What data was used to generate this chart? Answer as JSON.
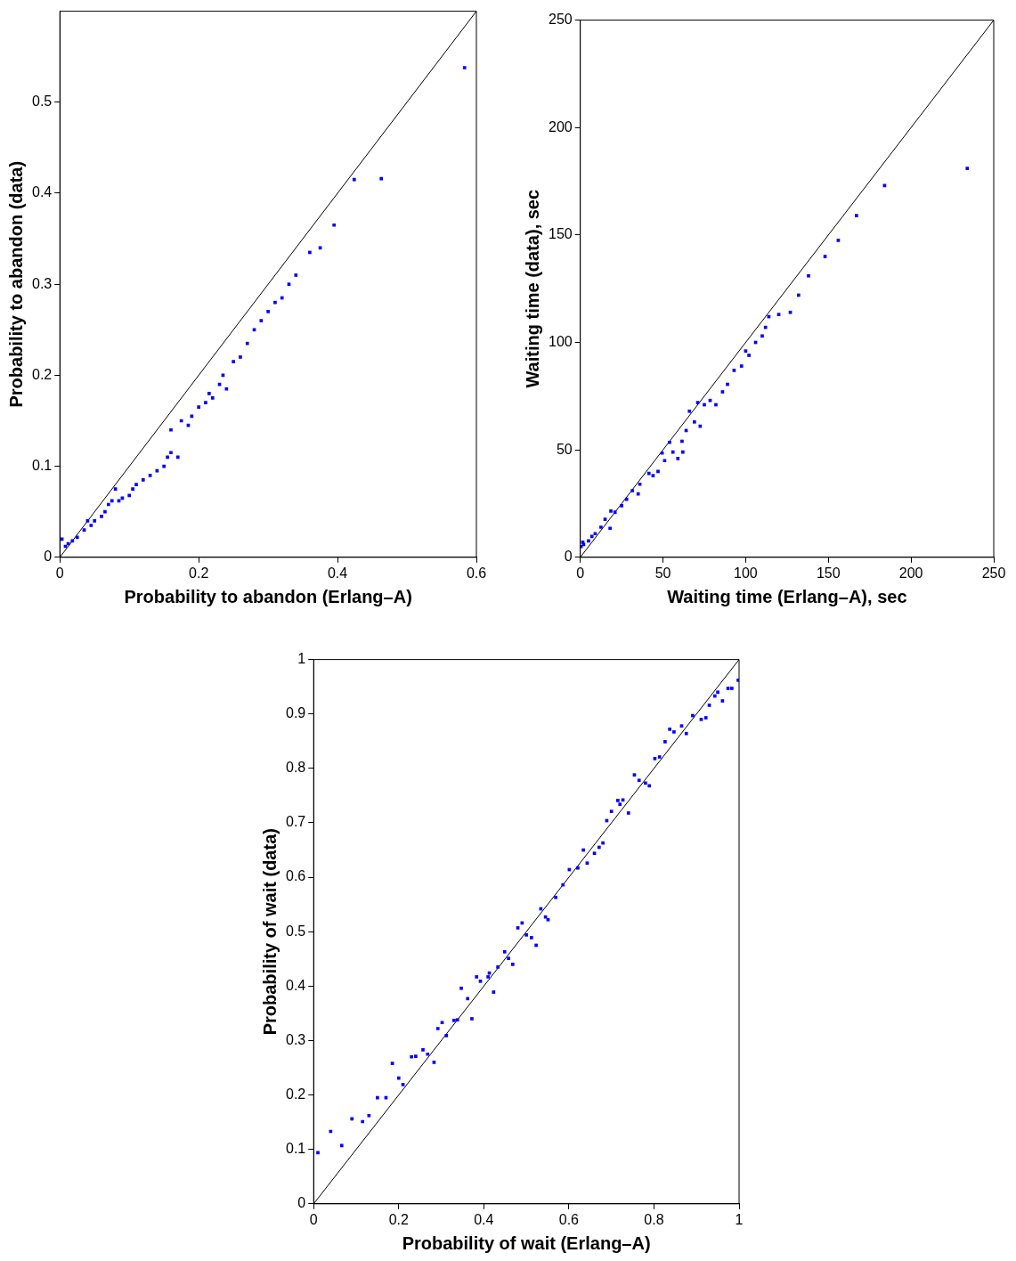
{
  "chart_data": [
    {
      "type": "scatter",
      "xlabel": "Probability to abandon (Erlang–A)",
      "ylabel": "Probability to abandon (data)",
      "xlim": [
        0,
        0.6
      ],
      "ylim": [
        0,
        0.6
      ],
      "xticks": [
        0,
        0.2,
        0.4,
        0.6
      ],
      "yticks": [
        0,
        0.1,
        0.2,
        0.3,
        0.4,
        0.5
      ],
      "series": [
        {
          "type": "scatter",
          "marker": "square",
          "color": "#0000ff",
          "x": [
            0.003,
            0.008,
            0.012,
            0.018,
            0.025,
            0.035,
            0.04,
            0.045,
            0.05,
            0.06,
            0.065,
            0.07,
            0.075,
            0.08,
            0.085,
            0.09,
            0.1,
            0.105,
            0.11,
            0.12,
            0.13,
            0.14,
            0.15,
            0.155,
            0.16,
            0.17,
            0.16,
            0.175,
            0.185,
            0.19,
            0.2,
            0.21,
            0.215,
            0.22,
            0.23,
            0.235,
            0.24,
            0.25,
            0.26,
            0.27,
            0.28,
            0.29,
            0.3,
            0.31,
            0.32,
            0.33,
            0.34,
            0.36,
            0.375,
            0.395,
            0.424,
            0.463,
            0.583
          ],
          "values": [
            0.02,
            0.012,
            0.015,
            0.018,
            0.022,
            0.03,
            0.04,
            0.035,
            0.04,
            0.045,
            0.05,
            0.058,
            0.062,
            0.075,
            0.062,
            0.065,
            0.068,
            0.075,
            0.08,
            0.085,
            0.09,
            0.095,
            0.1,
            0.11,
            0.115,
            0.11,
            0.14,
            0.15,
            0.145,
            0.155,
            0.165,
            0.17,
            0.18,
            0.175,
            0.19,
            0.2,
            0.185,
            0.215,
            0.22,
            0.235,
            0.25,
            0.26,
            0.27,
            0.28,
            0.285,
            0.3,
            0.31,
            0.335,
            0.34,
            0.365,
            0.415,
            0.416,
            0.538
          ]
        },
        {
          "type": "line",
          "color": "#000000",
          "x": [
            0,
            0.6
          ],
          "values": [
            0,
            0.6
          ]
        }
      ]
    },
    {
      "type": "scatter",
      "xlabel": "Waiting time (Erlang–A), sec",
      "ylabel": "Waiting time (data), sec",
      "xlim": [
        0,
        250
      ],
      "ylim": [
        0,
        250
      ],
      "xticks": [
        0,
        50,
        100,
        150,
        200,
        250
      ],
      "yticks": [
        0,
        50,
        100,
        150,
        200,
        250
      ],
      "series": [
        {
          "type": "scatter",
          "marker": "square",
          "color": "#0000ff",
          "x": [
            0.5,
            1.5,
            2,
            5,
            7,
            9,
            12.5,
            15,
            18,
            18.5,
            21,
            25,
            28,
            31.5,
            35,
            36,
            41.5,
            44,
            47,
            49.5,
            51,
            54,
            56,
            59,
            62,
            61.5,
            64,
            66,
            69,
            72.5,
            71,
            75,
            78.5,
            82,
            86,
            89,
            93,
            97.5,
            100,
            102,
            106,
            110,
            114,
            112,
            120,
            127,
            132,
            138,
            148,
            156,
            167,
            184,
            234
          ],
          "values": [
            5,
            7,
            6,
            7.6,
            9.7,
            11,
            14,
            17.7,
            13.5,
            21.5,
            21,
            24,
            27,
            31,
            29.5,
            34,
            39,
            38,
            40,
            48.5,
            45,
            53.5,
            49,
            46,
            49,
            54,
            59,
            68,
            63,
            61,
            72,
            71,
            73,
            71,
            77,
            80.5,
            87,
            89,
            96,
            94,
            100,
            103,
            112,
            107,
            113,
            114,
            122,
            131,
            140,
            147.5,
            159,
            173,
            181
          ]
        },
        {
          "type": "line",
          "color": "#000000",
          "x": [
            0,
            250
          ],
          "values": [
            0,
            250
          ]
        }
      ]
    },
    {
      "type": "scatter",
      "xlabel": "Probability of wait (Erlang–A)",
      "ylabel": "Probability of wait (data)",
      "xlim": [
        0,
        1
      ],
      "ylim": [
        0,
        1
      ],
      "xticks": [
        0,
        0.2,
        0.4,
        0.6,
        0.8,
        1
      ],
      "yticks": [
        0,
        0.1,
        0.2,
        0.3,
        0.4,
        0.5,
        0.6,
        0.7,
        0.8,
        0.9,
        1
      ],
      "series": [
        {
          "type": "scatter",
          "marker": "square",
          "color": "#0000ff",
          "x": [
            0.01,
            0.04,
            0.066,
            0.09,
            0.115,
            0.13,
            0.15,
            0.17,
            0.185,
            0.2,
            0.21,
            0.23,
            0.24,
            0.257,
            0.268,
            0.283,
            0.292,
            0.302,
            0.312,
            0.33,
            0.338,
            0.347,
            0.362,
            0.372,
            0.383,
            0.392,
            0.41,
            0.413,
            0.423,
            0.433,
            0.449,
            0.458,
            0.468,
            0.48,
            0.49,
            0.5,
            0.512,
            0.523,
            0.534,
            0.545,
            0.551,
            0.569,
            0.586,
            0.601,
            0.621,
            0.634,
            0.643,
            0.66,
            0.671,
            0.68,
            0.689,
            0.7,
            0.715,
            0.72,
            0.727,
            0.74,
            0.754,
            0.765,
            0.78,
            0.789,
            0.802,
            0.813,
            0.826,
            0.837,
            0.847,
            0.865,
            0.876,
            0.891,
            0.911,
            0.922,
            0.93,
            0.943,
            0.95,
            0.961,
            0.974,
            0.983,
            0.998
          ],
          "values": [
            0.094,
            0.133,
            0.107,
            0.156,
            0.151,
            0.162,
            0.195,
            0.195,
            0.258,
            0.231,
            0.219,
            0.27,
            0.271,
            0.283,
            0.275,
            0.26,
            0.322,
            0.333,
            0.309,
            0.337,
            0.338,
            0.396,
            0.377,
            0.34,
            0.417,
            0.409,
            0.417,
            0.424,
            0.389,
            0.435,
            0.463,
            0.451,
            0.44,
            0.507,
            0.516,
            0.494,
            0.489,
            0.475,
            0.542,
            0.527,
            0.522,
            0.563,
            0.586,
            0.614,
            0.617,
            0.65,
            0.626,
            0.644,
            0.655,
            0.663,
            0.704,
            0.721,
            0.741,
            0.734,
            0.742,
            0.718,
            0.788,
            0.778,
            0.773,
            0.768,
            0.818,
            0.821,
            0.849,
            0.872,
            0.867,
            0.878,
            0.864,
            0.897,
            0.89,
            0.893,
            0.916,
            0.933,
            0.94,
            0.924,
            0.947,
            0.947,
            0.962
          ]
        },
        {
          "type": "line",
          "color": "#000000",
          "x": [
            0,
            1
          ],
          "values": [
            0,
            1
          ]
        }
      ]
    }
  ]
}
